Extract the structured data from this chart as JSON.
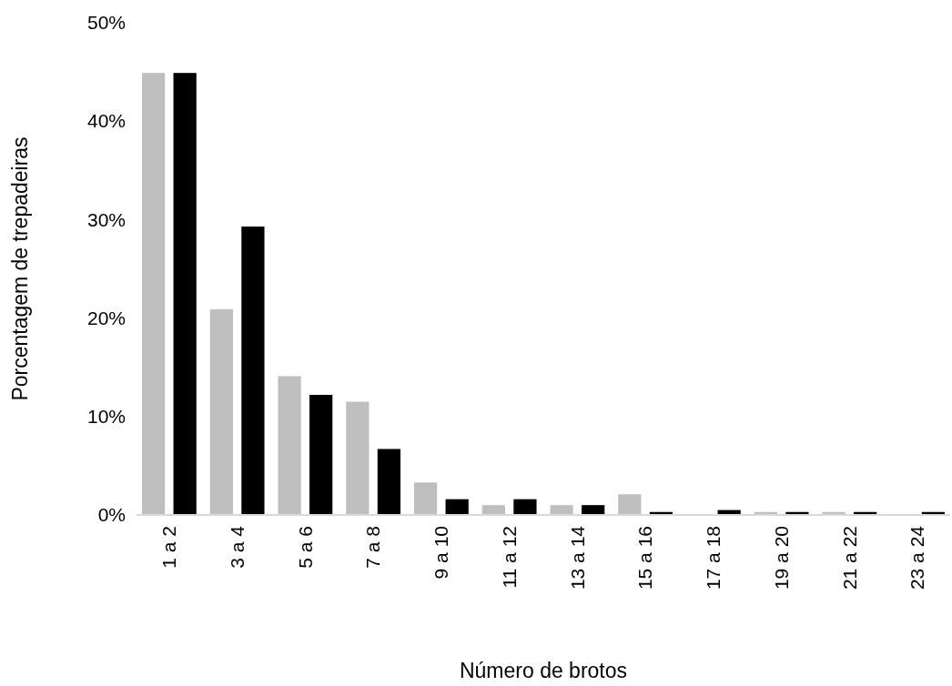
{
  "chart_data": {
    "type": "bar",
    "xlabel": "Número de brotos",
    "ylabel": "Porcentagem de trepadeiras",
    "categories": [
      "1 a 2",
      "3 a 4",
      "5 a 6",
      "7 a 8",
      "9 a 10",
      "11 a 12",
      "13 a 14",
      "15 a 16",
      "17 a 18",
      "19 a 20",
      "21 a 22",
      "23 a 24"
    ],
    "series": [
      {
        "color": "#bfbfbf",
        "values": [
          44.9,
          20.9,
          14.1,
          11.5,
          3.3,
          1.0,
          1.0,
          2.1,
          0,
          0.3,
          0.3,
          0
        ]
      },
      {
        "color": "#000000",
        "values": [
          44.9,
          29.3,
          12.2,
          6.7,
          1.6,
          1.6,
          1.0,
          0.3,
          0.5,
          0.3,
          0.3,
          0.3
        ]
      }
    ],
    "ylim": [
      0,
      50
    ],
    "yticks": [
      {
        "value": 0,
        "label": "0%"
      },
      {
        "value": 10,
        "label": "10%"
      },
      {
        "value": 20,
        "label": "20%"
      },
      {
        "value": 30,
        "label": "30%"
      },
      {
        "value": 40,
        "label": "40%"
      },
      {
        "value": 50,
        "label": "50%"
      }
    ],
    "grid": false
  }
}
